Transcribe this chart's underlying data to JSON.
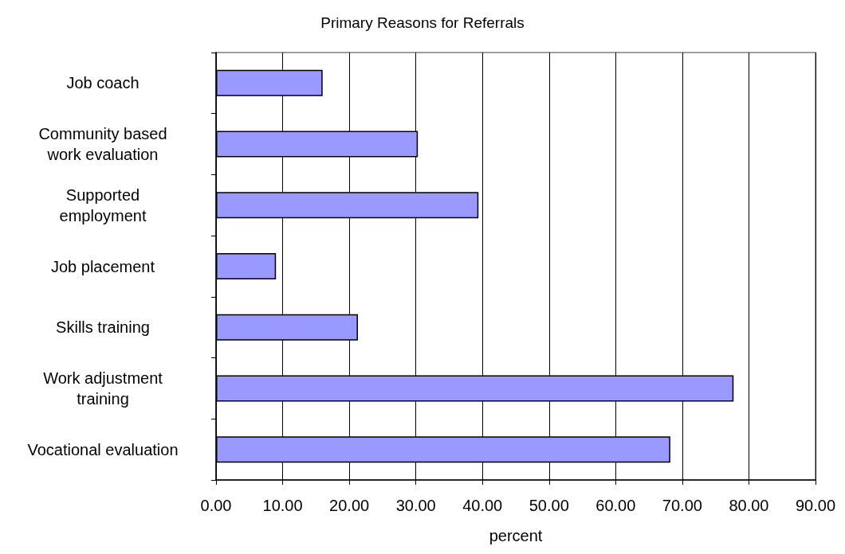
{
  "chart_data": {
    "type": "bar",
    "orientation": "horizontal",
    "title": "Primary Reasons for Referrals",
    "xlabel": "percent",
    "categories": [
      "Job coach",
      "Community based\nwork evaluation",
      "Supported\nemployment",
      "Job placement",
      "Skills training",
      "Work adjustment\ntraining",
      "Vocational evaluation"
    ],
    "values": [
      16.0,
      30.3,
      39.4,
      9.0,
      21.3,
      77.7,
      68.2
    ],
    "color": "#9999ff",
    "xlim": [
      0,
      90
    ],
    "xticks": [
      {
        "value": 0,
        "label": "0.00"
      },
      {
        "value": 10,
        "label": "10.00"
      },
      {
        "value": 20,
        "label": "20.00"
      },
      {
        "value": 30,
        "label": "30.00"
      },
      {
        "value": 40,
        "label": "40.00"
      },
      {
        "value": 50,
        "label": "50.00"
      },
      {
        "value": 60,
        "label": "60.00"
      },
      {
        "value": 70,
        "label": "70.00"
      },
      {
        "value": 80,
        "label": "80.00"
      },
      {
        "value": 90,
        "label": "90.00"
      }
    ],
    "grid": "x"
  }
}
